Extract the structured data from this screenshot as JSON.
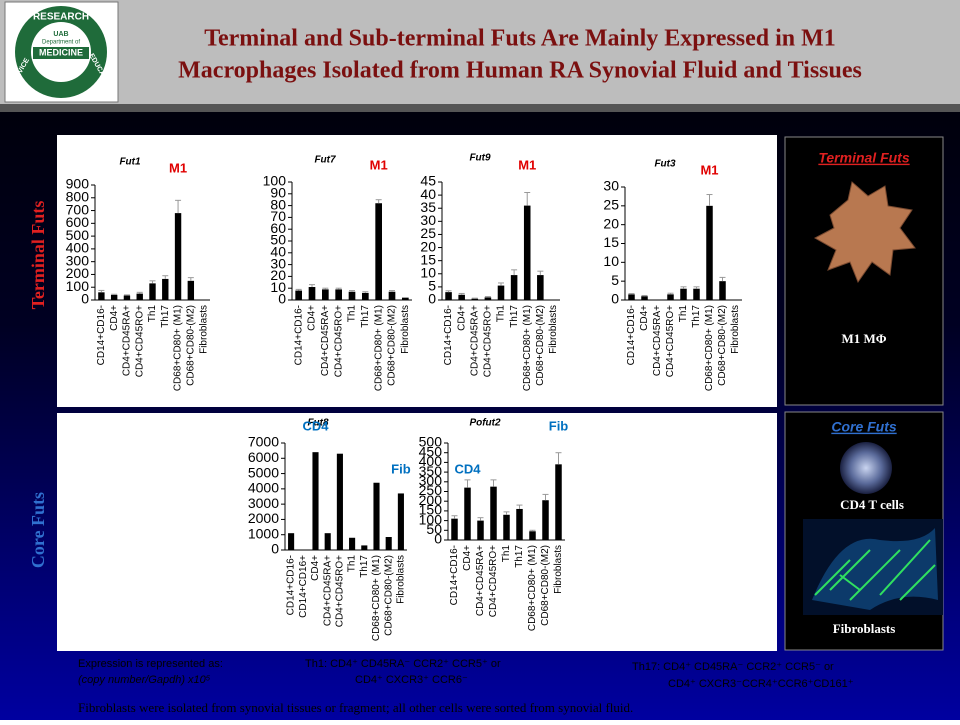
{
  "header": {
    "title_line1": "Terminal and Sub-terminal Futs Are Mainly Expressed in M1",
    "title_line2": "Macrophages Isolated from Human RA Synovial Fluid and Tissues",
    "logo": {
      "ring_top": "RESEARCH",
      "ring_left": "SERVICE",
      "ring_right": "EDUCATION",
      "line1": "UAB",
      "line2": "Department of",
      "line3": "MEDICINE"
    }
  },
  "side_labels": {
    "top": "Terminal Futs",
    "bottom": "Core Futs"
  },
  "right_panel": {
    "terminal_title": "Terminal Futs",
    "terminal_caption": "M1 MΦ",
    "core_title": "Core Futs",
    "cd4_caption": "CD4 T cells",
    "fib_caption": "Fibroblasts"
  },
  "notes": {
    "expr1": "Expression is represented as:",
    "expr2": "(copy number/Gapdh) x10⁵",
    "th1_a": "Th1:  CD4⁺ CD45RA⁻ CCR2⁺ CCR5⁺ or",
    "th1_b": "CD4⁺ CXCR3⁺ CCR6⁻",
    "th17_a": "Th17: CD4⁺ CD45RA⁻ CCR2⁺ CCR5⁻ or",
    "th17_b": "CD4⁺ CXCR3⁻CCR4⁺CCR6⁺CD161⁺",
    "footer": "Fibroblasts were isolated from synovial tissues or fragment; all other cells were sorted from synovial fluid."
  },
  "chart_data": [
    {
      "type": "bar",
      "title": "Fut1",
      "color": "#000000",
      "annotation_color": "#e00000",
      "annotations": [
        "M1"
      ],
      "categories": [
        "CD14+CD16-",
        "CD4+",
        "CD4+CD45RA+",
        "CD4+CD45RO+",
        "Th1",
        "Th17",
        "CD68+CD80+ (M1)",
        "CD68+CD80-(M2)",
        "Fibroblasts"
      ],
      "values": [
        60,
        40,
        35,
        50,
        130,
        165,
        680,
        150,
        0
      ],
      "errors": [
        15,
        5,
        5,
        10,
        20,
        25,
        100,
        25,
        0
      ],
      "ylim": [
        0,
        900
      ],
      "yticks": [
        0,
        100,
        200,
        300,
        400,
        500,
        600,
        700,
        800,
        900
      ]
    },
    {
      "type": "bar",
      "title": "Fut7",
      "color": "#000000",
      "annotation_color": "#e00000",
      "annotations": [
        "M1"
      ],
      "categories": [
        "CD14+CD16-",
        "CD4+",
        "CD4+CD45RA+",
        "CD4+CD45RO+",
        "Th1",
        "Th17",
        "CD68+CD80+ (M1)",
        "CD68+CD80-(M2)",
        "Fibroblasts"
      ],
      "values": [
        8,
        11,
        9,
        9,
        7,
        6,
        82,
        7,
        2
      ],
      "errors": [
        1,
        2,
        1,
        1,
        1,
        1,
        3,
        1,
        0
      ],
      "ylim": [
        0,
        100
      ],
      "yticks": [
        0,
        10,
        20,
        30,
        40,
        50,
        60,
        70,
        80,
        90,
        100
      ]
    },
    {
      "type": "bar",
      "title": "Fut9",
      "color": "#000000",
      "annotation_color": "#e00000",
      "annotations": [
        "M1"
      ],
      "categories": [
        "CD14+CD16-",
        "CD4+",
        "CD4+CD45RA+",
        "CD4+CD45RO+",
        "Th1",
        "Th17",
        "CD68+CD80+ (M1)",
        "CD68+CD80-(M2)",
        "Fibroblasts"
      ],
      "values": [
        3,
        2,
        0.5,
        1,
        5.5,
        9.5,
        36,
        9.5,
        0
      ],
      "errors": [
        0.5,
        0.5,
        0.2,
        0.3,
        1,
        2,
        5,
        1.5,
        0
      ],
      "ylim": [
        0,
        45
      ],
      "yticks": [
        0,
        5,
        10,
        15,
        20,
        25,
        30,
        35,
        40,
        45
      ]
    },
    {
      "type": "bar",
      "title": "Fut3",
      "color": "#000000",
      "annotation_color": "#e00000",
      "annotations": [
        "M1"
      ],
      "categories": [
        "CD14+CD16-",
        "CD4+",
        "CD4+CD45RA+",
        "CD4+CD45RO+",
        "Th1",
        "Th17",
        "CD68+CD80+ (M1)",
        "CD68+CD80-(M2)",
        "Fibroblasts"
      ],
      "values": [
        1.5,
        1,
        0,
        1.5,
        3,
        3,
        25,
        5,
        0
      ],
      "errors": [
        0.2,
        0.2,
        0,
        0.3,
        0.5,
        0.5,
        3,
        1,
        0
      ],
      "ylim": [
        0,
        30
      ],
      "yticks": [
        0,
        5,
        10,
        15,
        20,
        25,
        30
      ]
    },
    {
      "type": "bar",
      "title": "Fut8",
      "color": "#000000",
      "annotation_color": "#0070c0",
      "annotations": [
        "CD4",
        "Fib"
      ],
      "categories": [
        "CD14+CD16-",
        "CD14+CD16+",
        "CD4+",
        "CD4+CD45RA+",
        "CD4+CD45RO+",
        "Th1",
        "Th17",
        "CD68+CD80+ (M1)",
        "CD68+CD80-(M2)",
        "Fibroblasts"
      ],
      "values": [
        1100,
        0,
        6400,
        1100,
        6300,
        800,
        300,
        4400,
        850,
        3700
      ],
      "errors": [
        0,
        0,
        0,
        0,
        0,
        0,
        0,
        0,
        0,
        0
      ],
      "ylim": [
        0,
        7000
      ],
      "yticks": [
        0,
        1000,
        2000,
        3000,
        4000,
        5000,
        6000,
        7000
      ]
    },
    {
      "type": "bar",
      "title": "Pofut2",
      "color": "#000000",
      "annotation_color": "#0070c0",
      "annotations": [
        "CD4",
        "Fib"
      ],
      "categories": [
        "CD14+CD16-",
        "CD4+",
        "CD4+CD45RA+",
        "CD4+CD45RO+",
        "Th1",
        "Th17",
        "CD68+CD80+ (M1)",
        "CD68+CD80-(M2)",
        "Fibroblasts"
      ],
      "values": [
        110,
        270,
        100,
        275,
        130,
        160,
        45,
        205,
        390
      ],
      "errors": [
        15,
        40,
        15,
        35,
        15,
        20,
        5,
        30,
        60
      ],
      "ylim": [
        0,
        500
      ],
      "yticks": [
        0,
        50,
        100,
        150,
        200,
        250,
        300,
        350,
        400,
        450,
        500
      ]
    }
  ]
}
